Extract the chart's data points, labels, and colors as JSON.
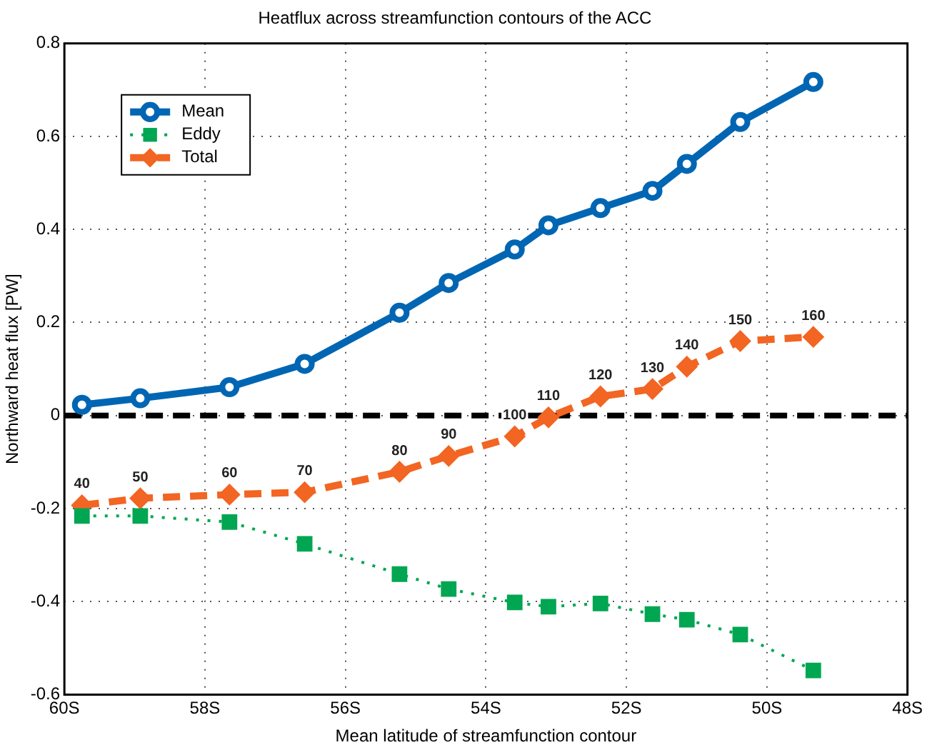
{
  "chart_data": {
    "type": "line",
    "title": "Heatflux across streamfunction contours of the ACC",
    "xlabel": "Mean latitude of streamfunction contour",
    "ylabel": "Northward heat flux [PW]",
    "x": [
      -59.75,
      -58.92,
      -57.65,
      -56.58,
      -55.23,
      -54.53,
      -53.59,
      -53.11,
      -52.37,
      -51.63,
      -51.14,
      -50.38,
      -49.34
    ],
    "series": [
      {
        "name": "Mean",
        "color": "#0066b3",
        "marker": "circle",
        "line_style": "solid",
        "values": [
          0.023,
          0.037,
          0.061,
          0.111,
          0.221,
          0.285,
          0.357,
          0.409,
          0.446,
          0.483,
          0.541,
          0.631,
          0.717
        ]
      },
      {
        "name": "Eddy",
        "color": "#00a651",
        "marker": "square",
        "line_style": "dotted",
        "values": [
          -0.216,
          -0.216,
          -0.229,
          -0.276,
          -0.341,
          -0.373,
          -0.402,
          -0.411,
          -0.404,
          -0.427,
          -0.439,
          -0.471,
          -0.548
        ]
      },
      {
        "name": "Total",
        "color": "#f26522",
        "marker": "diamond",
        "line_style": "dashed",
        "values": [
          -0.193,
          -0.178,
          -0.17,
          -0.165,
          -0.121,
          -0.087,
          -0.045,
          -0.004,
          0.041,
          0.057,
          0.105,
          0.16,
          0.169
        ]
      }
    ],
    "xlim": [
      -60,
      -48
    ],
    "xticks": [
      {
        "value": -60,
        "label": "60S"
      },
      {
        "value": -58,
        "label": "58S"
      },
      {
        "value": -56,
        "label": "56S"
      },
      {
        "value": -54,
        "label": "54S"
      },
      {
        "value": -52,
        "label": "52S"
      },
      {
        "value": -50,
        "label": "50S"
      },
      {
        "value": -48,
        "label": "48S"
      }
    ],
    "ylim": [
      -0.6,
      0.8
    ],
    "yticks": [
      -0.6,
      -0.4,
      -0.2,
      0,
      0.2,
      0.4,
      0.6,
      0.8
    ],
    "ref_lines": [
      {
        "axis": "y",
        "value": 0,
        "color": "#000000",
        "line_style": "dashed"
      }
    ],
    "annotations": [
      {
        "text": "40",
        "x": -59.75,
        "y": -0.193
      },
      {
        "text": "50",
        "x": -58.92,
        "y": -0.178
      },
      {
        "text": "60",
        "x": -57.65,
        "y": -0.17
      },
      {
        "text": "70",
        "x": -56.58,
        "y": -0.165
      },
      {
        "text": "80",
        "x": -55.23,
        "y": -0.121
      },
      {
        "text": "90",
        "x": -54.53,
        "y": -0.087
      },
      {
        "text": "100",
        "x": -53.59,
        "y": -0.045
      },
      {
        "text": "110",
        "x": -53.11,
        "y": -0.004
      },
      {
        "text": "120",
        "x": -52.37,
        "y": 0.041
      },
      {
        "text": "130",
        "x": -51.63,
        "y": 0.057
      },
      {
        "text": "140",
        "x": -51.14,
        "y": 0.105
      },
      {
        "text": "150",
        "x": -50.38,
        "y": 0.16
      },
      {
        "text": "160",
        "x": -49.34,
        "y": 0.169
      }
    ],
    "grid": true,
    "legend": "top left"
  }
}
